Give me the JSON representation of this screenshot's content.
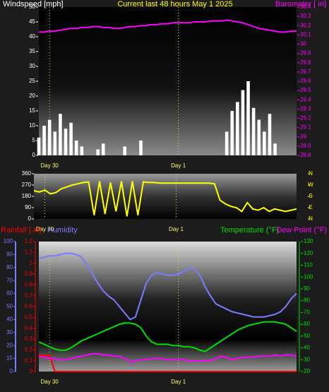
{
  "chart_data": [
    {
      "type": "combo",
      "title": "Current last 48 hours May 1 2025",
      "x": [
        0,
        1,
        2,
        3,
        4,
        5,
        6,
        7,
        8,
        9,
        10,
        11,
        12,
        13,
        14,
        15,
        16,
        17,
        18,
        19,
        20,
        21,
        22,
        23,
        24,
        25,
        26,
        27,
        28,
        29,
        30,
        31,
        32,
        33,
        34,
        35,
        36,
        37,
        38,
        39,
        40,
        41,
        42,
        43,
        44,
        45,
        46,
        47,
        48
      ],
      "xlim": [
        0,
        48
      ],
      "xticks": [
        {
          "value": 2,
          "label": "Day 30"
        },
        {
          "value": 26,
          "label": "Day 1"
        }
      ],
      "ylim": [
        0,
        50
      ],
      "yticks": [
        0,
        5,
        10,
        15,
        20,
        25,
        30,
        35,
        40,
        45,
        50
      ],
      "y2lim": [
        28.8,
        30.4
      ],
      "y2ticks": [
        28.8,
        28.9,
        29,
        29.1,
        29.2,
        29.3,
        29.4,
        29.5,
        29.6,
        29.7,
        29.8,
        29.9,
        30,
        30.1,
        30.2,
        30.3,
        30.4
      ],
      "series": [
        {
          "name": "Windspeed [mph]",
          "type": "bar",
          "color": "#ffffff",
          "values": [
            6,
            10,
            12,
            8,
            14,
            9,
            11,
            5,
            3,
            0,
            0,
            2,
            4,
            0,
            0,
            0,
            3,
            0,
            0,
            5,
            0,
            0,
            0,
            0,
            0,
            0,
            0,
            0,
            0,
            0,
            0,
            0,
            0,
            0,
            0,
            8,
            15,
            18,
            22,
            25,
            16,
            12,
            8,
            14,
            4,
            0,
            0,
            0,
            0
          ]
        },
        {
          "name": "Barometer [ in]",
          "type": "line",
          "axis": "y2",
          "color": "#ff00ff",
          "values": [
            30.13,
            30.13,
            30.14,
            30.14,
            30.15,
            30.16,
            30.17,
            30.17,
            30.18,
            30.18,
            30.19,
            30.19,
            30.18,
            30.18,
            30.17,
            30.17,
            30.18,
            30.19,
            30.19,
            30.2,
            30.2,
            30.21,
            30.21,
            30.22,
            30.22,
            30.23,
            30.23,
            30.23,
            30.23,
            30.24,
            30.24,
            30.24,
            30.25,
            30.25,
            30.25,
            30.26,
            30.25,
            30.24,
            30.23,
            30.21,
            30.19,
            30.17,
            30.16,
            30.15,
            30.14,
            30.13,
            30.13,
            30.14,
            30.14
          ]
        }
      ]
    },
    {
      "type": "line",
      "x": [
        0,
        1,
        2,
        3,
        4,
        5,
        6,
        7,
        8,
        9,
        10,
        11,
        12,
        13,
        14,
        15,
        16,
        17,
        18,
        19,
        20,
        21,
        22,
        23,
        24,
        25,
        26,
        27,
        28,
        29,
        30,
        31,
        32,
        33,
        34,
        35,
        36,
        37,
        38,
        39,
        40,
        41,
        42,
        43,
        44,
        45,
        46,
        47,
        48
      ],
      "xlim": [
        0,
        48
      ],
      "xticks": [
        {
          "value": 2,
          "label": "Day 30"
        },
        {
          "value": 26,
          "label": "Day 1"
        }
      ],
      "ylim": [
        0,
        360
      ],
      "yticks": [
        0,
        90,
        180,
        270,
        360
      ],
      "y2lim": [
        0,
        360
      ],
      "y2ticks": [
        {
          "value": 360,
          "label": "N"
        },
        {
          "value": 270,
          "label": "W"
        },
        {
          "value": 180,
          "label": "S"
        },
        {
          "value": 90,
          "label": "E"
        },
        {
          "value": 0,
          "label": "N"
        }
      ],
      "series": [
        {
          "color": "#ffff00",
          "values": [
            225,
            215,
            230,
            200,
            210,
            240,
            255,
            270,
            280,
            290,
            295,
            30,
            300,
            40,
            290,
            60,
            300,
            20,
            300,
            30,
            295,
            290,
            290,
            285,
            285,
            285,
            285,
            285,
            285,
            285,
            285,
            285,
            285,
            280,
            150,
            120,
            100,
            90,
            60,
            130,
            80,
            70,
            90,
            60,
            80,
            70,
            60,
            70,
            80
          ]
        }
      ]
    },
    {
      "type": "line",
      "x": [
        0,
        1,
        2,
        3,
        4,
        5,
        6,
        7,
        8,
        9,
        10,
        11,
        12,
        13,
        14,
        15,
        16,
        17,
        18,
        19,
        20,
        21,
        22,
        23,
        24,
        25,
        26,
        27,
        28,
        29,
        30,
        31,
        32,
        33,
        34,
        35,
        36,
        37,
        38,
        39,
        40,
        41,
        42,
        43,
        44,
        45,
        46,
        47,
        48
      ],
      "xlim": [
        0,
        48
      ],
      "xticks": [
        {
          "value": 2,
          "label": "Day 30"
        },
        {
          "value": 26,
          "label": "Day 1"
        }
      ],
      "ylim": [
        0,
        1.2
      ],
      "yticks": [
        0,
        0.1,
        0.2,
        0.3,
        0.4,
        0.5,
        0.6,
        0.7,
        0.8,
        0.9,
        1,
        1.1,
        1.2
      ],
      "y3lim": [
        0,
        100
      ],
      "y3ticks": [
        0,
        10,
        20,
        30,
        40,
        50,
        60,
        70,
        80,
        90,
        100
      ],
      "y2lim": [
        20,
        130
      ],
      "y2ticks": [
        20,
        30,
        40,
        50,
        60,
        70,
        80,
        90,
        100,
        110,
        120,
        130
      ],
      "series": [
        {
          "name": "Rainfall [.in]",
          "color": "#ff0000",
          "values": [
            0.15,
            0.15,
            0.15,
            0,
            0,
            0,
            0,
            0,
            0,
            0,
            0,
            0,
            0,
            0,
            0,
            0,
            0,
            0,
            0,
            0,
            0,
            0,
            0,
            0,
            0,
            0,
            0,
            0,
            0,
            0,
            0,
            0,
            0,
            0,
            0,
            0,
            0,
            0,
            0,
            0,
            0,
            0,
            0,
            0,
            0,
            0,
            0,
            0,
            0
          ]
        },
        {
          "name": "Humidity",
          "axis": "y3",
          "color": "#7b7bff",
          "values": [
            87,
            88,
            89,
            89,
            90,
            91,
            91,
            90,
            88,
            82,
            75,
            68,
            62,
            58,
            55,
            50,
            45,
            40,
            42,
            55,
            68,
            74,
            76,
            75,
            74,
            74,
            75,
            77,
            80,
            79,
            74,
            65,
            58,
            52,
            50,
            48,
            46,
            45,
            44,
            43,
            42,
            42,
            42,
            43,
            44,
            46,
            50,
            56,
            60
          ]
        },
        {
          "name": "Temperature (°F)",
          "axis": "y2",
          "color": "#00dd00",
          "values": [
            45,
            43,
            41,
            39,
            38,
            38,
            40,
            43,
            46,
            48,
            50,
            52,
            54,
            56,
            58,
            60,
            61,
            61,
            60,
            57,
            50,
            45,
            43,
            43,
            43,
            42,
            42,
            41,
            41,
            40,
            38,
            37,
            40,
            43,
            46,
            49,
            52,
            55,
            57,
            59,
            60,
            61,
            62,
            62,
            62,
            61,
            60,
            57,
            54
          ]
        },
        {
          "name": "Dew Point (°F)",
          "axis": "y2",
          "color": "#ff00ff",
          "values": [
            33,
            32,
            31,
            31,
            30,
            30,
            31,
            32,
            33,
            34,
            35,
            35,
            34,
            34,
            33,
            33,
            31,
            28,
            29,
            30,
            30,
            31,
            31,
            31,
            30,
            30,
            30,
            30,
            29,
            29,
            29,
            29,
            29,
            31,
            33,
            32,
            30,
            31,
            32,
            32,
            32,
            33,
            33,
            33,
            34,
            33,
            34,
            34,
            33
          ]
        }
      ]
    }
  ]
}
